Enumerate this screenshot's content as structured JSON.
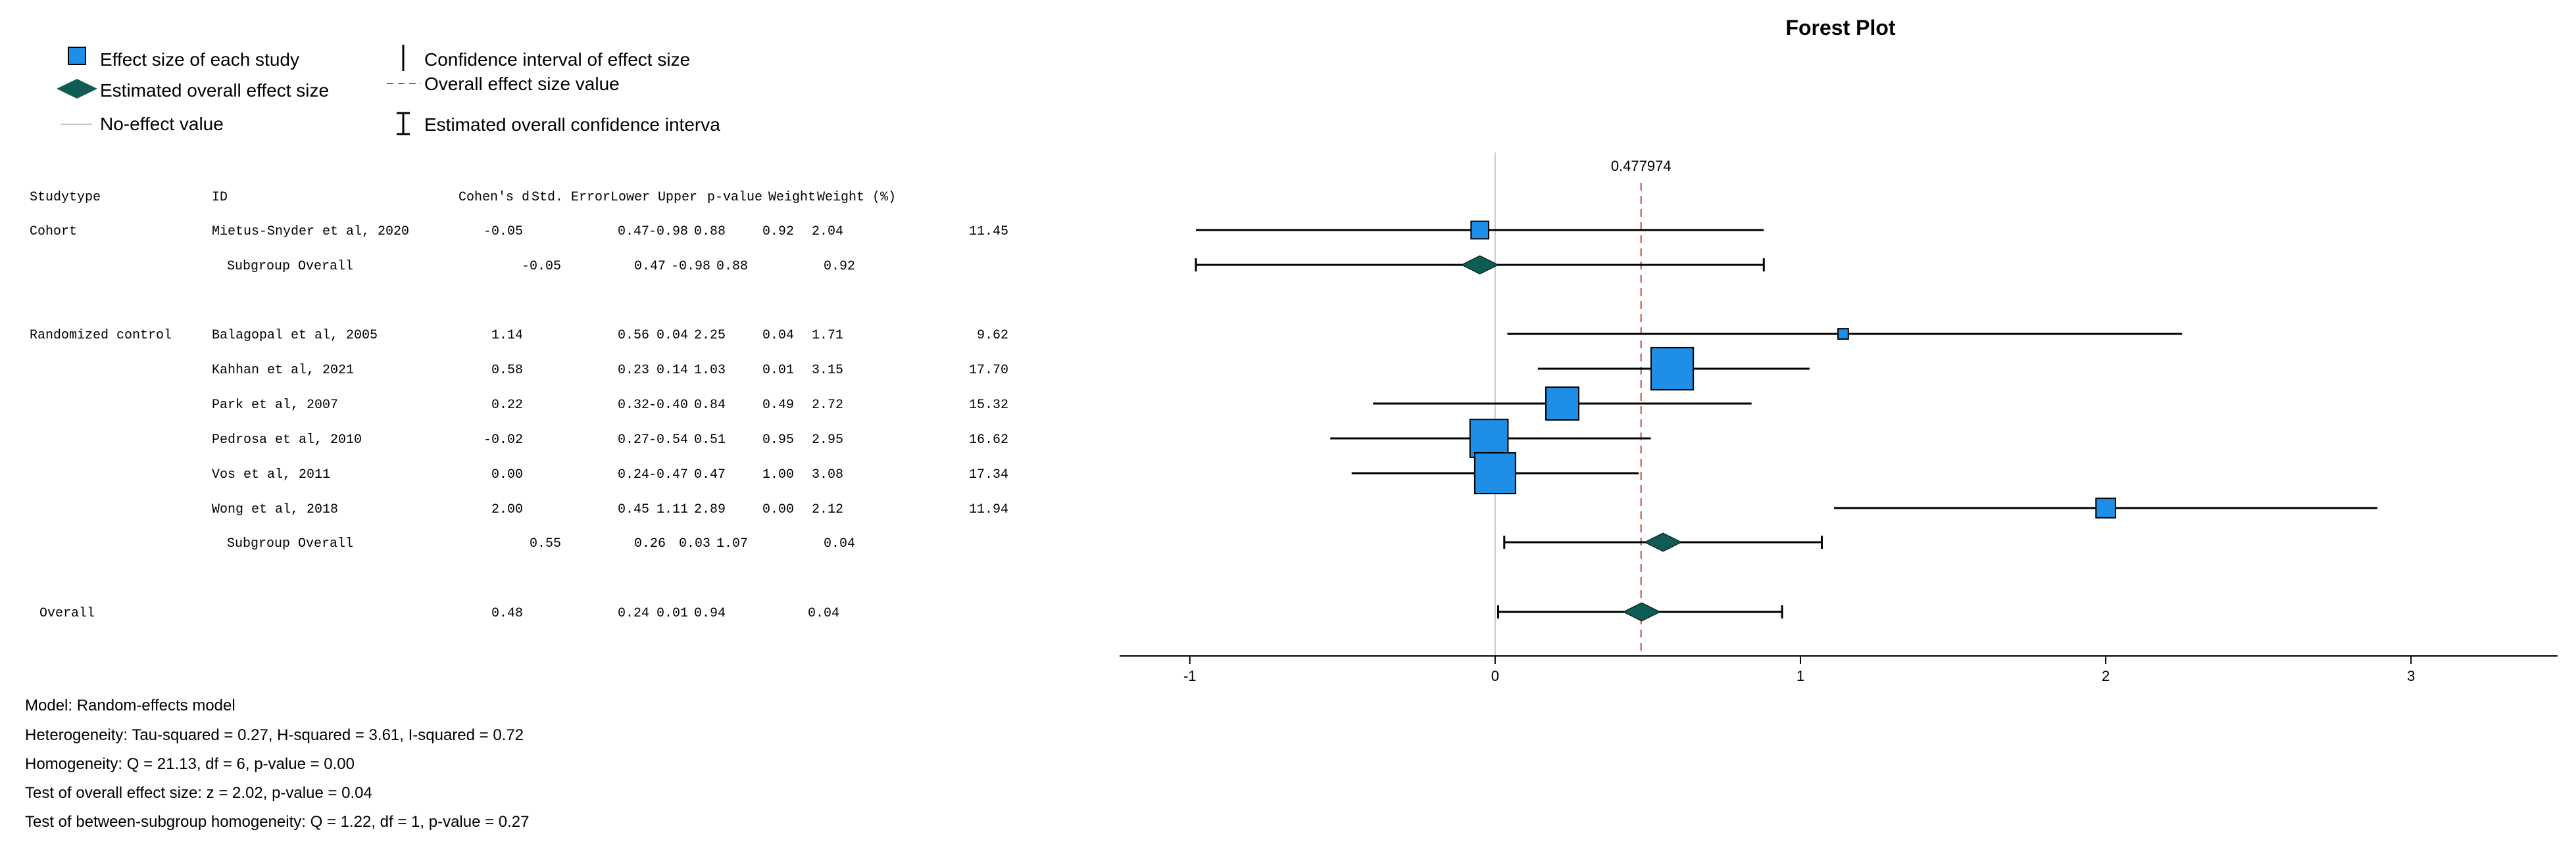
{
  "title": "Forest Plot",
  "legend": {
    "effect_size": "Effect size of each study",
    "ci": "Confidence interval of effect size",
    "overall_effect": "Estimated overall effect size",
    "overall_line": "Overall effect size value",
    "no_effect": "No-effect value",
    "overall_ci": "Estimated overall confidence interva"
  },
  "table_headers": [
    "Studytype",
    "ID",
    "Cohen's d",
    "Std. Error",
    "Lower",
    "Upper",
    "p-value",
    "Weight",
    "Weight (%)"
  ],
  "colors": {
    "box": "#1f8ee6",
    "diamond": "#0f5c55",
    "ref_line": "#d94040",
    "zero_line": "#c8c8c8"
  },
  "chart_data": {
    "type": "forest",
    "title": "Forest Plot",
    "x_ticks": [
      "-1",
      "0",
      "1",
      "2",
      "3"
    ],
    "xlim": [
      -1.23,
      3.48
    ],
    "overall_value_label": "0.477974",
    "overall_value": 0.477974,
    "no_effect_value": 0,
    "rows": [
      {
        "kind": "study",
        "studytype": "Cohort",
        "id": "Mietus-Snyder et al, 2020",
        "d": "-0.05",
        "se": "0.47",
        "lower": "-0.98",
        "upper": "0.88",
        "p": "0.92",
        "weight": "2.04",
        "weight_pct": "11.45",
        "est": -0.05,
        "lo": -0.98,
        "hi": 0.88,
        "wpct": 11.45
      },
      {
        "kind": "subgroup",
        "studytype": "",
        "id": "Subgroup Overall",
        "d": "-0.05",
        "se": "0.47",
        "lower": "-0.98",
        "upper": "0.88",
        "p": "0.92",
        "weight": "",
        "weight_pct": "",
        "est": -0.05,
        "lo": -0.98,
        "hi": 0.88
      },
      {
        "kind": "study",
        "studytype": "Randomized control",
        "id": "Balagopal et al, 2005",
        "d": "1.14",
        "se": "0.56",
        "lower": "0.04",
        "upper": "2.25",
        "p": "0.04",
        "weight": "1.71",
        "weight_pct": "9.62",
        "est": 1.14,
        "lo": 0.04,
        "hi": 2.25,
        "wpct": 9.62
      },
      {
        "kind": "study",
        "studytype": "",
        "id": "Kahhan et al, 2021",
        "d": "0.58",
        "se": "0.23",
        "lower": "0.14",
        "upper": "1.03",
        "p": "0.01",
        "weight": "3.15",
        "weight_pct": "17.70",
        "est": 0.58,
        "lo": 0.14,
        "hi": 1.03,
        "wpct": 17.7
      },
      {
        "kind": "study",
        "studytype": "",
        "id": "Park et al, 2007",
        "d": "0.22",
        "se": "0.32",
        "lower": "-0.40",
        "upper": "0.84",
        "p": "0.49",
        "weight": "2.72",
        "weight_pct": "15.32",
        "est": 0.22,
        "lo": -0.4,
        "hi": 0.84,
        "wpct": 15.32
      },
      {
        "kind": "study",
        "studytype": "",
        "id": "Pedrosa et al, 2010",
        "d": "-0.02",
        "se": "0.27",
        "lower": "-0.54",
        "upper": "0.51",
        "p": "0.95",
        "weight": "2.95",
        "weight_pct": "16.62",
        "est": -0.02,
        "lo": -0.54,
        "hi": 0.51,
        "wpct": 16.62
      },
      {
        "kind": "study",
        "studytype": "",
        "id": "Vos et al, 2011",
        "d": "0.00",
        "se": "0.24",
        "lower": "-0.47",
        "upper": "0.47",
        "p": "1.00",
        "weight": "3.08",
        "weight_pct": "17.34",
        "est": 0.0,
        "lo": -0.47,
        "hi": 0.47,
        "wpct": 17.34
      },
      {
        "kind": "study",
        "studytype": "",
        "id": "Wong et al, 2018",
        "d": "2.00",
        "se": "0.45",
        "lower": "1.11",
        "upper": "2.89",
        "p": "0.00",
        "weight": "2.12",
        "weight_pct": "11.94",
        "est": 2.0,
        "lo": 1.11,
        "hi": 2.89,
        "wpct": 11.94
      },
      {
        "kind": "subgroup",
        "studytype": "",
        "id": "Subgroup Overall",
        "d": "0.55",
        "se": "0.26",
        "lower": "0.03",
        "upper": "1.07",
        "p": "0.04",
        "weight": "",
        "weight_pct": "",
        "est": 0.55,
        "lo": 0.03,
        "hi": 1.07
      },
      {
        "kind": "overall",
        "studytype": "Overall",
        "id": "",
        "d": "0.48",
        "se": "0.24",
        "lower": "0.01",
        "upper": "0.94",
        "p": "0.04",
        "weight": "",
        "weight_pct": "",
        "est": 0.48,
        "lo": 0.01,
        "hi": 0.94
      }
    ]
  },
  "stats": [
    "Model: Random-effects model",
    "Heterogeneity: Tau-squared = 0.27, H-squared = 3.61, I-squared = 0.72",
    "Homogeneity: Q = 21.13, df = 6, p-value = 0.00",
    "Test of overall effect size: z = 2.02, p-value = 0.04",
    "Test of between-subgroup homogeneity: Q = 1.22, df = 1, p-value = 0.27"
  ]
}
